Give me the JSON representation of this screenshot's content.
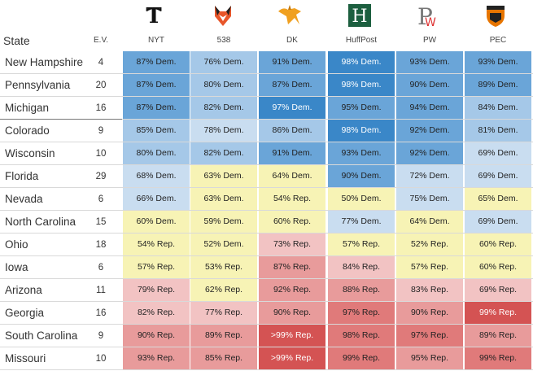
{
  "header": {
    "state_label": "State",
    "ev_label": "E.V.",
    "forecasters": [
      {
        "name": "NYT",
        "icon": "nyt-logo-icon"
      },
      {
        "name": "538",
        "icon": "fox-538-logo-icon"
      },
      {
        "name": "DK",
        "icon": "daily-kos-logo-icon"
      },
      {
        "name": "HuffPost",
        "icon": "huffpost-logo-icon"
      },
      {
        "name": "PW",
        "icon": "pw-logo-icon"
      },
      {
        "name": "PEC",
        "icon": "princeton-shield-icon"
      }
    ]
  },
  "colors": {
    "dem_dark": "#3a87c8",
    "dem_mid": "#6aa5d8",
    "dem_light": "#a5c8e8",
    "dem_pale": "#c9ddf0",
    "tossup": "#f7f3b5",
    "rep_pale": "#f2c3c3",
    "rep_light": "#e89b9b",
    "rep_mid": "#e07a7a",
    "rep_dark": "#d45353"
  },
  "rows": [
    {
      "state": "New Hampshire",
      "ev": "4",
      "cells": [
        {
          "text": "87% Dem.",
          "c": "dem_mid"
        },
        {
          "text": "76% Dem.",
          "c": "dem_light"
        },
        {
          "text": "91% Dem.",
          "c": "dem_mid"
        },
        {
          "text": "98% Dem.",
          "c": "dem_dark"
        },
        {
          "text": "93% Dem.",
          "c": "dem_mid"
        },
        {
          "text": "93% Dem.",
          "c": "dem_mid"
        }
      ]
    },
    {
      "state": "Pennsylvania",
      "ev": "20",
      "cells": [
        {
          "text": "87% Dem.",
          "c": "dem_mid"
        },
        {
          "text": "80% Dem.",
          "c": "dem_light"
        },
        {
          "text": "87% Dem.",
          "c": "dem_mid"
        },
        {
          "text": "98% Dem.",
          "c": "dem_dark"
        },
        {
          "text": "90% Dem.",
          "c": "dem_mid"
        },
        {
          "text": "89% Dem.",
          "c": "dem_mid"
        }
      ]
    },
    {
      "state": "Michigan",
      "ev": "16",
      "cells": [
        {
          "text": "87% Dem.",
          "c": "dem_mid"
        },
        {
          "text": "82% Dem.",
          "c": "dem_light"
        },
        {
          "text": "97% Dem.",
          "c": "dem_dark"
        },
        {
          "text": "95% Dem.",
          "c": "dem_mid"
        },
        {
          "text": "94% Dem.",
          "c": "dem_mid"
        },
        {
          "text": "84% Dem.",
          "c": "dem_light"
        }
      ]
    },
    {
      "state": "Colorado",
      "ev": "9",
      "cells": [
        {
          "text": "85% Dem.",
          "c": "dem_light"
        },
        {
          "text": "78% Dem.",
          "c": "dem_pale"
        },
        {
          "text": "86% Dem.",
          "c": "dem_light"
        },
        {
          "text": "98% Dem.",
          "c": "dem_dark"
        },
        {
          "text": "92% Dem.",
          "c": "dem_mid"
        },
        {
          "text": "81% Dem.",
          "c": "dem_light"
        }
      ]
    },
    {
      "state": "Wisconsin",
      "ev": "10",
      "cells": [
        {
          "text": "80% Dem.",
          "c": "dem_light"
        },
        {
          "text": "82% Dem.",
          "c": "dem_light"
        },
        {
          "text": "91% Dem.",
          "c": "dem_mid"
        },
        {
          "text": "93% Dem.",
          "c": "dem_mid"
        },
        {
          "text": "92% Dem.",
          "c": "dem_mid"
        },
        {
          "text": "69% Dem.",
          "c": "dem_pale"
        }
      ]
    },
    {
      "state": "Florida",
      "ev": "29",
      "cells": [
        {
          "text": "68% Dem.",
          "c": "dem_pale"
        },
        {
          "text": "63% Dem.",
          "c": "tossup"
        },
        {
          "text": "64% Dem.",
          "c": "tossup"
        },
        {
          "text": "90% Dem.",
          "c": "dem_mid"
        },
        {
          "text": "72% Dem.",
          "c": "dem_pale"
        },
        {
          "text": "69% Dem.",
          "c": "dem_pale"
        }
      ]
    },
    {
      "state": "Nevada",
      "ev": "6",
      "cells": [
        {
          "text": "66% Dem.",
          "c": "dem_pale"
        },
        {
          "text": "63% Dem.",
          "c": "tossup"
        },
        {
          "text": "54% Rep.",
          "c": "tossup"
        },
        {
          "text": "50% Dem.",
          "c": "tossup"
        },
        {
          "text": "75% Dem.",
          "c": "dem_pale"
        },
        {
          "text": "65% Dem.",
          "c": "tossup"
        }
      ]
    },
    {
      "state": "North Carolina",
      "ev": "15",
      "cells": [
        {
          "text": "60% Dem.",
          "c": "tossup"
        },
        {
          "text": "59% Dem.",
          "c": "tossup"
        },
        {
          "text": "60% Rep.",
          "c": "tossup"
        },
        {
          "text": "77% Dem.",
          "c": "dem_pale"
        },
        {
          "text": "64% Dem.",
          "c": "tossup"
        },
        {
          "text": "69% Dem.",
          "c": "dem_pale"
        }
      ]
    },
    {
      "state": "Ohio",
      "ev": "18",
      "cells": [
        {
          "text": "54% Rep.",
          "c": "tossup"
        },
        {
          "text": "52% Dem.",
          "c": "tossup"
        },
        {
          "text": "73% Rep.",
          "c": "rep_pale"
        },
        {
          "text": "57% Rep.",
          "c": "tossup"
        },
        {
          "text": "52% Rep.",
          "c": "tossup"
        },
        {
          "text": "60% Rep.",
          "c": "tossup"
        }
      ]
    },
    {
      "state": "Iowa",
      "ev": "6",
      "cells": [
        {
          "text": "57% Rep.",
          "c": "tossup"
        },
        {
          "text": "53% Rep.",
          "c": "tossup"
        },
        {
          "text": "87% Rep.",
          "c": "rep_light"
        },
        {
          "text": "84% Rep.",
          "c": "rep_pale"
        },
        {
          "text": "57% Rep.",
          "c": "tossup"
        },
        {
          "text": "60% Rep.",
          "c": "tossup"
        }
      ]
    },
    {
      "state": "Arizona",
      "ev": "11",
      "cells": [
        {
          "text": "79% Rep.",
          "c": "rep_pale"
        },
        {
          "text": "62% Rep.",
          "c": "tossup"
        },
        {
          "text": "92% Rep.",
          "c": "rep_light"
        },
        {
          "text": "88% Rep.",
          "c": "rep_light"
        },
        {
          "text": "83% Rep.",
          "c": "rep_pale"
        },
        {
          "text": "69% Rep.",
          "c": "rep_pale"
        }
      ]
    },
    {
      "state": "Georgia",
      "ev": "16",
      "cells": [
        {
          "text": "82% Rep.",
          "c": "rep_pale"
        },
        {
          "text": "77% Rep.",
          "c": "rep_pale"
        },
        {
          "text": "90% Rep.",
          "c": "rep_light"
        },
        {
          "text": "97% Rep.",
          "c": "rep_mid"
        },
        {
          "text": "90% Rep.",
          "c": "rep_light"
        },
        {
          "text": "99% Rep.",
          "c": "rep_dark"
        }
      ]
    },
    {
      "state": "South Carolina",
      "ev": "9",
      "cells": [
        {
          "text": "90% Rep.",
          "c": "rep_light"
        },
        {
          "text": "89% Rep.",
          "c": "rep_light"
        },
        {
          "text": ">99% Rep.",
          "c": "rep_dark"
        },
        {
          "text": "98% Rep.",
          "c": "rep_mid"
        },
        {
          "text": "97% Rep.",
          "c": "rep_mid"
        },
        {
          "text": "89% Rep.",
          "c": "rep_light"
        }
      ]
    },
    {
      "state": "Missouri",
      "ev": "10",
      "cells": [
        {
          "text": "93% Rep.",
          "c": "rep_light"
        },
        {
          "text": "85% Rep.",
          "c": "rep_light"
        },
        {
          "text": ">99% Rep.",
          "c": "rep_dark"
        },
        {
          "text": "99% Rep.",
          "c": "rep_mid"
        },
        {
          "text": "95% Rep.",
          "c": "rep_light"
        },
        {
          "text": "99% Rep.",
          "c": "rep_mid"
        }
      ]
    }
  ]
}
